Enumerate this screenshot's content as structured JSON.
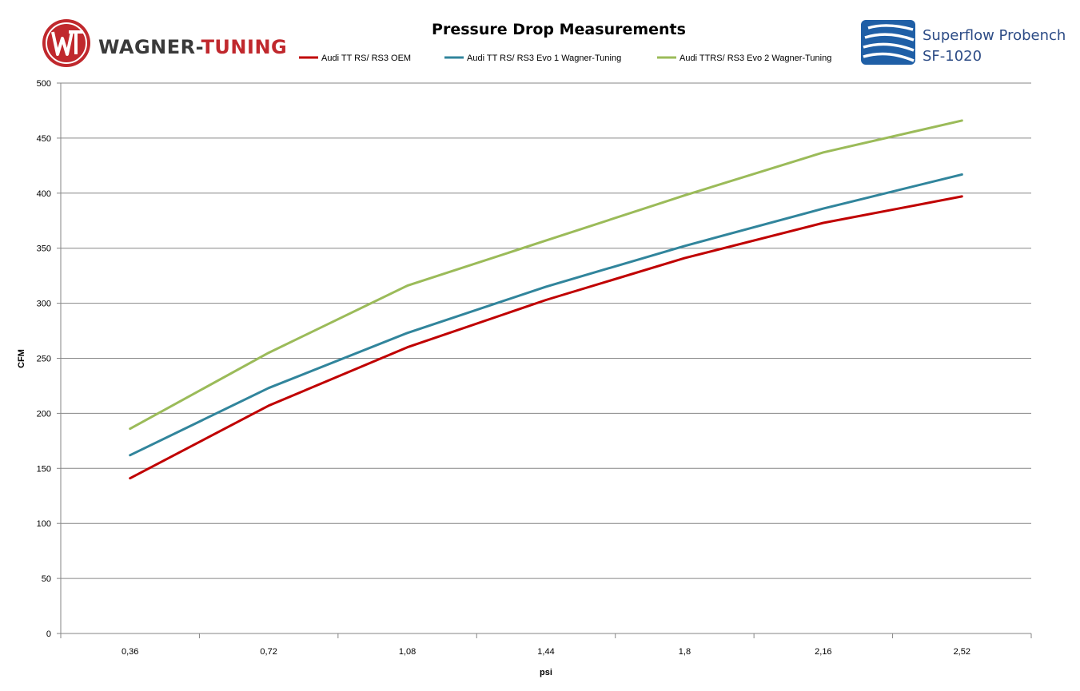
{
  "brand": {
    "left_prefix": "WAGNER-",
    "left_suffix": "TUNING",
    "right_line1": "Superflow Probench",
    "right_line2": "SF-1020"
  },
  "colors": {
    "oem": "#c00000",
    "evo1": "#31859c",
    "evo2": "#9bbb59",
    "grid": "#868686",
    "brand_red": "#c0282d",
    "brand_blue": "#2d4c86"
  },
  "chart_data": {
    "type": "line",
    "title": "Pressure Drop Measurements",
    "xlabel": "psi",
    "ylabel": "CFM",
    "categories": [
      "0,36",
      "0,72",
      "1,08",
      "1,44",
      "1,8",
      "2,16",
      "2,52"
    ],
    "ylim": [
      0,
      500
    ],
    "yticks": [
      0,
      50,
      100,
      150,
      200,
      250,
      300,
      350,
      400,
      450,
      500
    ],
    "grid": true,
    "legend_position": "top",
    "series": [
      {
        "name": "Audi TT RS/ RS3  OEM",
        "color": "#c00000",
        "values": [
          141,
          207,
          260,
          303,
          341,
          373,
          397
        ]
      },
      {
        "name": "Audi TT RS/ RS3 Evo 1 Wagner-Tuning",
        "color": "#31859c",
        "values": [
          162,
          223,
          273,
          315,
          352,
          386,
          417
        ]
      },
      {
        "name": "Audi TTRS/ RS3 Evo 2 Wagner-Tuning",
        "color": "#9bbb59",
        "values": [
          186,
          255,
          316,
          357,
          398,
          437,
          466
        ]
      }
    ]
  }
}
